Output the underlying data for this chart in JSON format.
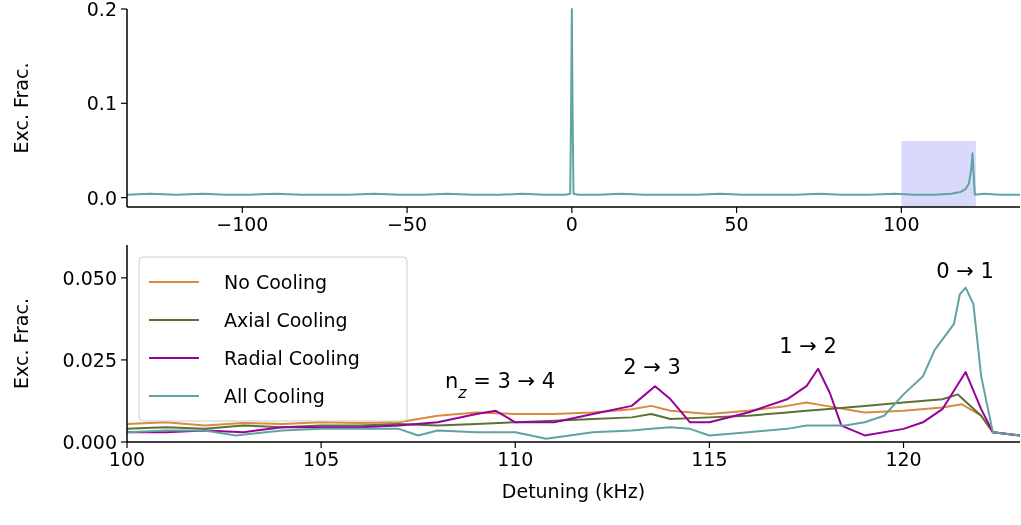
{
  "chart_data": [
    {
      "type": "line",
      "ylabel": "Exc. Frac.",
      "xlim": [
        -135,
        136
      ],
      "ylim": [
        -0.01,
        0.2
      ],
      "xticks": [
        {
          "value": -100,
          "label": "−100"
        },
        {
          "value": -50,
          "label": "−50"
        },
        0,
        50,
        100
      ],
      "yticks": [
        {
          "value": 0,
          "label": "0.0"
        },
        0.1,
        0.2
      ],
      "bands": [
        {
          "axis": "x",
          "from": 100,
          "to": 122.6,
          "color": "#d9d9fb"
        }
      ],
      "series": [
        {
          "color": "#5fa3a3",
          "x": [
            -135,
            -128,
            -120,
            -112,
            -105,
            -98,
            -90,
            -82,
            -75,
            -68,
            -60,
            -52,
            -45,
            -38,
            -30,
            -22,
            -15,
            -8,
            -2,
            -0.5,
            -0.2,
            0,
            0.2,
            0.5,
            2,
            8,
            15,
            22,
            30,
            38,
            45,
            52,
            60,
            68,
            75,
            82,
            90,
            98,
            104,
            110,
            115,
            118,
            119.5,
            120.5,
            121.2,
            121.6,
            122,
            122.3,
            125,
            130,
            136
          ],
          "values": [
            0.003,
            0.004,
            0.003,
            0.004,
            0.003,
            0.003,
            0.004,
            0.003,
            0.003,
            0.003,
            0.004,
            0.003,
            0.003,
            0.004,
            0.003,
            0.003,
            0.004,
            0.003,
            0.003,
            0.004,
            0.1,
            0.2,
            0.1,
            0.004,
            0.003,
            0.003,
            0.004,
            0.003,
            0.003,
            0.003,
            0.004,
            0.003,
            0.003,
            0.003,
            0.004,
            0.003,
            0.003,
            0.004,
            0.003,
            0.003,
            0.004,
            0.006,
            0.009,
            0.015,
            0.03,
            0.047,
            0.02,
            0.003,
            0.004,
            0.003,
            0.003
          ]
        }
      ]
    },
    {
      "type": "line",
      "xlabel": "Detuning (kHz)",
      "ylabel": "Exc. Frac.",
      "xlim": [
        100,
        123
      ],
      "ylim": [
        0,
        0.06
      ],
      "xticks": [
        100,
        105,
        110,
        115,
        120
      ],
      "yticks": [
        {
          "value": 0,
          "label": "0.000"
        },
        {
          "value": 0.025,
          "label": "0.025"
        },
        {
          "value": 0.05,
          "label": "0.050"
        }
      ],
      "legend": "top left",
      "annotations": [
        "n$_{z}$ = 3 → 4",
        "2 → 3",
        "1 → 2",
        "0 → 1"
      ],
      "series": [
        {
          "name": "No Cooling",
          "color": "#d98a3f",
          "x": [
            100,
            101,
            102,
            103,
            104,
            105,
            106,
            107,
            108,
            109,
            110,
            111,
            112,
            113,
            113.5,
            114,
            115,
            116,
            117,
            117.5,
            118,
            119,
            120,
            121,
            121.5,
            122,
            122.3,
            123
          ],
          "values": [
            0.0055,
            0.006,
            0.005,
            0.0058,
            0.0055,
            0.006,
            0.0058,
            0.006,
            0.008,
            0.009,
            0.0085,
            0.0085,
            0.009,
            0.01,
            0.011,
            0.0095,
            0.0085,
            0.0095,
            0.011,
            0.012,
            0.011,
            0.009,
            0.0095,
            0.0105,
            0.0115,
            0.008,
            0.003,
            0.002
          ]
        },
        {
          "name": "Axial Cooling",
          "color": "#5b7332",
          "x": [
            100,
            101,
            102,
            103,
            104,
            105,
            106,
            107,
            108,
            109,
            110,
            111,
            112,
            113,
            113.5,
            114,
            115,
            116,
            117,
            117.5,
            118,
            119,
            120,
            121,
            121.4,
            122,
            122.3,
            123
          ],
          "values": [
            0.004,
            0.0045,
            0.004,
            0.005,
            0.0045,
            0.005,
            0.005,
            0.0055,
            0.005,
            0.0055,
            0.006,
            0.0065,
            0.007,
            0.0075,
            0.0085,
            0.007,
            0.0075,
            0.008,
            0.009,
            0.0095,
            0.01,
            0.011,
            0.012,
            0.013,
            0.0145,
            0.008,
            0.003,
            0.002
          ]
        },
        {
          "name": "Radial Cooling",
          "color": "#990099",
          "x": [
            100,
            101,
            102,
            103,
            104,
            105,
            106,
            107,
            108,
            109,
            109.5,
            110,
            111,
            112,
            113,
            113.6,
            114,
            114.5,
            115,
            116,
            117,
            117.5,
            117.8,
            118.1,
            118.4,
            119,
            120,
            120.5,
            121,
            121.6,
            122,
            122.3,
            123
          ],
          "values": [
            0.003,
            0.003,
            0.0035,
            0.003,
            0.0045,
            0.0045,
            0.0045,
            0.005,
            0.006,
            0.0085,
            0.0095,
            0.006,
            0.006,
            0.0085,
            0.011,
            0.017,
            0.013,
            0.006,
            0.006,
            0.009,
            0.013,
            0.017,
            0.0223,
            0.015,
            0.005,
            0.002,
            0.004,
            0.006,
            0.01,
            0.0213,
            0.01,
            0.003,
            0.002
          ]
        },
        {
          "name": "All Cooling",
          "color": "#5fa3a3",
          "x": [
            100,
            101,
            102,
            102.8,
            104,
            105,
            106,
            107,
            107.5,
            108,
            109,
            110,
            110.8,
            112,
            113,
            113.5,
            114,
            114.5,
            115,
            116,
            117,
            117.5,
            118,
            118.5,
            119,
            119.5,
            120,
            120.5,
            120.8,
            121.3,
            121.45,
            121.6,
            121.8,
            122,
            122.3,
            123
          ],
          "values": [
            0.003,
            0.0035,
            0.0035,
            0.002,
            0.0035,
            0.004,
            0.004,
            0.004,
            0.002,
            0.0035,
            0.003,
            0.003,
            0.001,
            0.003,
            0.0035,
            0.004,
            0.0045,
            0.004,
            0.002,
            0.003,
            0.004,
            0.005,
            0.005,
            0.005,
            0.006,
            0.008,
            0.0145,
            0.02,
            0.028,
            0.036,
            0.045,
            0.047,
            0.042,
            0.02,
            0.003,
            0.002
          ]
        }
      ]
    }
  ]
}
